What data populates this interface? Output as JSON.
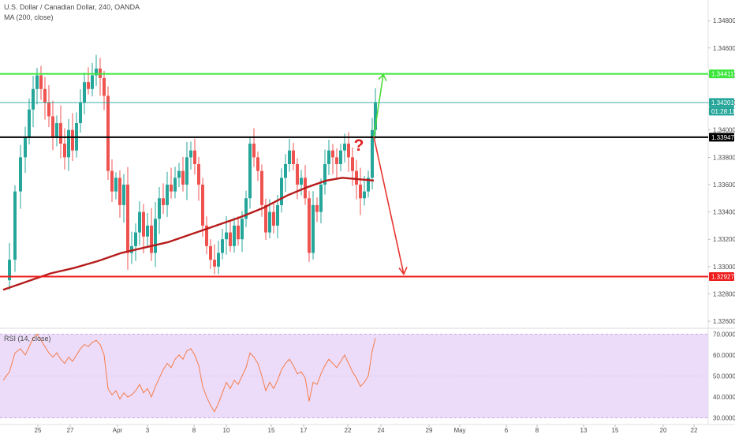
{
  "header": {
    "symbol": "U.S. Dollar / Canadian Dollar, 240, OANDA",
    "indicator": "MA (200, close)"
  },
  "rsi_header": {
    "label": "RSI (14, close)"
  },
  "price_tags": {
    "resistance": "1.34411",
    "current": "1.34201",
    "countdown": "01:28:11",
    "pivot": "1.33947",
    "support": "1.32927"
  },
  "annotation": {
    "question": "?"
  },
  "colors": {
    "bull": "#26a69a",
    "bear": "#ef5350",
    "ma": "#b71c1c",
    "resistance": "#39e639",
    "pivot": "#000000",
    "support": "#ee1c1c",
    "current_line": "#26a69a",
    "rsi_line": "#f57c48",
    "rsi_band": "#ecdcfa"
  },
  "chart_data": [
    {
      "type": "candlestick",
      "title": "U.S. Dollar / Canadian Dollar, 240, OANDA",
      "y_ticks": [
        1.348,
        1.346,
        1.344,
        1.342,
        1.34,
        1.338,
        1.336,
        1.334,
        1.332,
        1.33,
        1.328,
        1.326
      ],
      "ylim": [
        1.3256,
        1.3494
      ],
      "x_ticks": [
        "25",
        "27",
        "Apr",
        "3",
        "8",
        "10",
        "15",
        "17",
        "22",
        "24",
        "29",
        "May",
        "6",
        "8",
        "13",
        "15",
        "20",
        "22"
      ],
      "horizontal_levels": [
        {
          "value": 1.34411,
          "color": "#39e639"
        },
        {
          "value": 1.33947,
          "color": "#000000"
        },
        {
          "value": 1.32927,
          "color": "#ee1c1c"
        },
        {
          "value": 1.34201,
          "color": "#26a69a"
        }
      ],
      "series": [
        {
          "name": "MA (200, close)",
          "type": "line",
          "points": [
            [
              0,
              1.3283
            ],
            [
              30,
              1.3289
            ],
            [
              60,
              1.3295
            ],
            [
              90,
              1.3299
            ],
            [
              120,
              1.3304
            ],
            [
              150,
              1.331
            ],
            [
              180,
              1.3314
            ],
            [
              210,
              1.3318
            ],
            [
              240,
              1.3324
            ],
            [
              270,
              1.333
            ],
            [
              300,
              1.3336
            ],
            [
              330,
              1.3343
            ],
            [
              360,
              1.3352
            ],
            [
              385,
              1.3358
            ],
            [
              410,
              1.3363
            ],
            [
              430,
              1.3365
            ],
            [
              450,
              1.3364
            ],
            [
              470,
              1.3363
            ]
          ]
        },
        {
          "name": "Price",
          "type": "close_line",
          "points": [
            [
              0,
              1.329
            ],
            [
              8,
              1.3305
            ],
            [
              15,
              1.3355
            ],
            [
              22,
              1.338
            ],
            [
              28,
              1.3395
            ],
            [
              33,
              1.3415
            ],
            [
              38,
              1.343
            ],
            [
              43,
              1.344
            ],
            [
              48,
              1.343
            ],
            [
              53,
              1.342
            ],
            [
              58,
              1.341
            ],
            [
              63,
              1.3395
            ],
            [
              68,
              1.3405
            ],
            [
              73,
              1.339
            ],
            [
              78,
              1.338
            ],
            [
              83,
              1.34
            ],
            [
              88,
              1.3385
            ],
            [
              93,
              1.3405
            ],
            [
              98,
              1.342
            ],
            [
              103,
              1.3435
            ],
            [
              108,
              1.343
            ],
            [
              113,
              1.344
            ],
            [
              118,
              1.3445
            ],
            [
              123,
              1.3438
            ],
            [
              128,
              1.3425
            ],
            [
              133,
              1.337
            ],
            [
              138,
              1.3355
            ],
            [
              143,
              1.3365
            ],
            [
              148,
              1.3345
            ],
            [
              153,
              1.336
            ],
            [
              158,
              1.331
            ],
            [
              163,
              1.3315
            ],
            [
              168,
              1.3325
            ],
            [
              173,
              1.334
            ],
            [
              178,
              1.3322
            ],
            [
              183,
              1.333
            ],
            [
              188,
              1.331
            ],
            [
              193,
              1.3335
            ],
            [
              198,
              1.335
            ],
            [
              203,
              1.3345
            ],
            [
              208,
              1.336
            ],
            [
              213,
              1.3355
            ],
            [
              218,
              1.3365
            ],
            [
              223,
              1.337
            ],
            [
              228,
              1.336
            ],
            [
              233,
              1.338
            ],
            [
              238,
              1.3385
            ],
            [
              243,
              1.3375
            ],
            [
              248,
              1.336
            ],
            [
              253,
              1.333
            ],
            [
              258,
              1.3315
            ],
            [
              263,
              1.3305
            ],
            [
              268,
              1.33
            ],
            [
              273,
              1.331
            ],
            [
              278,
              1.332
            ],
            [
              283,
              1.3325
            ],
            [
              288,
              1.3315
            ],
            [
              293,
              1.333
            ],
            [
              298,
              1.332
            ],
            [
              303,
              1.3335
            ],
            [
              308,
              1.335
            ],
            [
              313,
              1.339
            ],
            [
              318,
              1.338
            ],
            [
              323,
              1.337
            ],
            [
              328,
              1.3345
            ],
            [
              333,
              1.3325
            ],
            [
              338,
              1.334
            ],
            [
              343,
              1.333
            ],
            [
              348,
              1.3345
            ],
            [
              353,
              1.3365
            ],
            [
              358,
              1.3375
            ],
            [
              363,
              1.3385
            ],
            [
              368,
              1.3375
            ],
            [
              373,
              1.336
            ],
            [
              378,
              1.3365
            ],
            [
              383,
              1.335
            ],
            [
              388,
              1.331
            ],
            [
              393,
              1.3345
            ],
            [
              398,
              1.334
            ],
            [
              403,
              1.336
            ],
            [
              408,
              1.3375
            ],
            [
              413,
              1.3385
            ],
            [
              418,
              1.338
            ],
            [
              423,
              1.3375
            ],
            [
              428,
              1.3385
            ],
            [
              433,
              1.339
            ],
            [
              438,
              1.338
            ],
            [
              443,
              1.337
            ],
            [
              448,
              1.336
            ],
            [
              453,
              1.335
            ],
            [
              458,
              1.3355
            ],
            [
              463,
              1.3365
            ],
            [
              468,
              1.34
            ],
            [
              472,
              1.342
            ]
          ]
        }
      ]
    },
    {
      "type": "line",
      "title": "RSI (14, close)",
      "y_ticks": [
        70,
        60,
        50,
        40,
        30
      ],
      "ylim": [
        28,
        72
      ],
      "band": [
        30,
        70
      ],
      "series": [
        {
          "name": "RSI (14, close)",
          "points": [
            [
              0,
              48
            ],
            [
              8,
              52
            ],
            [
              15,
              61
            ],
            [
              22,
              63
            ],
            [
              28,
              60
            ],
            [
              33,
              64
            ],
            [
              38,
              68
            ],
            [
              43,
              70
            ],
            [
              48,
              67
            ],
            [
              53,
              64
            ],
            [
              58,
              61
            ],
            [
              63,
              59
            ],
            [
              68,
              61
            ],
            [
              73,
              58
            ],
            [
              78,
              56
            ],
            [
              83,
              59
            ],
            [
              88,
              57
            ],
            [
              93,
              60
            ],
            [
              98,
              63
            ],
            [
              103,
              65
            ],
            [
              108,
              64
            ],
            [
              113,
              66
            ],
            [
              118,
              67
            ],
            [
              123,
              65
            ],
            [
              128,
              60
            ],
            [
              133,
              44
            ],
            [
              138,
              41
            ],
            [
              143,
              43
            ],
            [
              148,
              39
            ],
            [
              153,
              42
            ],
            [
              158,
              40
            ],
            [
              163,
              41
            ],
            [
              168,
              43
            ],
            [
              173,
              46
            ],
            [
              178,
              42
            ],
            [
              183,
              44
            ],
            [
              188,
              40
            ],
            [
              193,
              45
            ],
            [
              198,
              49
            ],
            [
              203,
              53
            ],
            [
              208,
              56
            ],
            [
              213,
              54
            ],
            [
              218,
              58
            ],
            [
              223,
              60
            ],
            [
              228,
              58
            ],
            [
              233,
              62
            ],
            [
              238,
              63
            ],
            [
              243,
              60
            ],
            [
              248,
              55
            ],
            [
              253,
              45
            ],
            [
              258,
              40
            ],
            [
              263,
              36
            ],
            [
              268,
              33
            ],
            [
              273,
              37
            ],
            [
              278,
              42
            ],
            [
              283,
              47
            ],
            [
              288,
              44
            ],
            [
              293,
              48
            ],
            [
              298,
              46
            ],
            [
              303,
              50
            ],
            [
              308,
              54
            ],
            [
              313,
              61
            ],
            [
              318,
              59
            ],
            [
              323,
              56
            ],
            [
              328,
              50
            ],
            [
              333,
              43
            ],
            [
              338,
              47
            ],
            [
              343,
              44
            ],
            [
              348,
              48
            ],
            [
              353,
              53
            ],
            [
              358,
              56
            ],
            [
              363,
              58
            ],
            [
              368,
              55
            ],
            [
              373,
              51
            ],
            [
              378,
              52
            ],
            [
              383,
              49
            ],
            [
              388,
              38
            ],
            [
              393,
              47
            ],
            [
              398,
              46
            ],
            [
              403,
              51
            ],
            [
              408,
              55
            ],
            [
              413,
              58
            ],
            [
              418,
              56
            ],
            [
              423,
              54
            ],
            [
              428,
              57
            ],
            [
              433,
              60
            ],
            [
              438,
              56
            ],
            [
              443,
              52
            ],
            [
              448,
              49
            ],
            [
              453,
              45
            ],
            [
              458,
              47
            ],
            [
              463,
              50
            ],
            [
              468,
              62
            ],
            [
              472,
              68
            ]
          ]
        }
      ]
    }
  ]
}
